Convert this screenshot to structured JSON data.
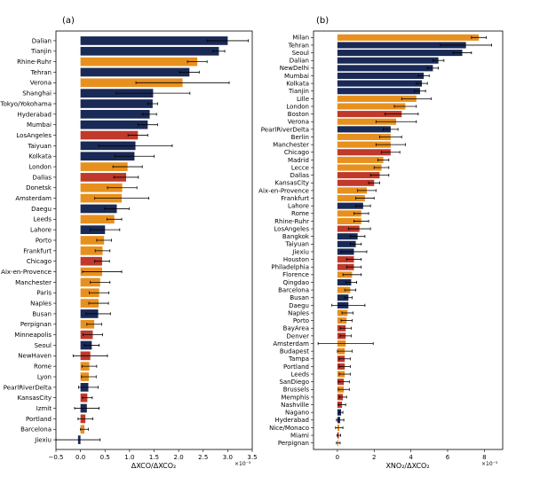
{
  "colors": {
    "east_asia_navy": "#1a2a56",
    "europe_orange": "#e8901e",
    "north_america_red": "#c0392b",
    "error_bar": "#000000"
  },
  "chart_data": [
    {
      "type": "bar",
      "orientation": "horizontal",
      "panel_label": "(a)",
      "xlabel": "ΔXCO/ΔXCO₂",
      "x_scale_note": "×10⁻³",
      "xlim": [
        -0.5,
        3.5
      ],
      "xticks": [
        -0.5,
        0.0,
        0.5,
        1.0,
        1.5,
        2.0,
        2.5,
        3.0,
        3.5
      ],
      "xtick_labels": [
        "−0.5",
        "0.0",
        "0.5",
        "1.0",
        "1.5",
        "2.0",
        "2.5",
        "3.0",
        "3.5"
      ],
      "grid": false,
      "legend": "none",
      "categories": [
        "Dalian",
        "Tianjin",
        "Rhine-Ruhr",
        "Tehran",
        "Verona",
        "Shanghai",
        "Tokyo/Yokohama",
        "Hyderabad",
        "Mumbai",
        "LosAngeles",
        "Taiyuan",
        "Kolkata",
        "London",
        "Dallas",
        "Donetsk",
        "Amsterdam",
        "Daegu",
        "Leeds",
        "Lahore",
        "Porto",
        "Frankfurt",
        "Chicago",
        "Aix-en-Provence",
        "Manchester",
        "Paris",
        "Naples",
        "Busan",
        "Perpignan",
        "Minneapolis",
        "Seoul",
        "NewHaven",
        "Rome",
        "Lyon",
        "PearlRiverDelta",
        "KansasCity",
        "Izmit",
        "Portland",
        "Barcelona",
        "Jiexiu"
      ],
      "values": [
        3.0,
        2.82,
        2.38,
        2.22,
        2.08,
        1.48,
        1.47,
        1.41,
        1.37,
        1.17,
        1.12,
        1.1,
        0.96,
        0.93,
        0.85,
        0.84,
        0.74,
        0.69,
        0.5,
        0.48,
        0.45,
        0.44,
        0.44,
        0.4,
        0.38,
        0.37,
        0.36,
        0.28,
        0.25,
        0.23,
        0.2,
        0.18,
        0.17,
        0.16,
        0.14,
        0.13,
        0.1,
        0.08,
        -0.05
      ],
      "errors": [
        0.42,
        0.12,
        0.2,
        0.2,
        0.95,
        0.75,
        0.1,
        0.14,
        0.2,
        0.2,
        0.75,
        0.4,
        0.3,
        0.25,
        0.3,
        0.55,
        0.25,
        0.15,
        0.3,
        0.15,
        0.15,
        0.15,
        0.4,
        0.2,
        0.2,
        0.2,
        0.25,
        0.15,
        0.2,
        0.15,
        0.35,
        0.15,
        0.15,
        0.2,
        0.1,
        0.25,
        0.15,
        0.08,
        0.45
      ],
      "region": [
        "east_asia_navy",
        "east_asia_navy",
        "europe_orange",
        "east_asia_navy",
        "europe_orange",
        "east_asia_navy",
        "east_asia_navy",
        "east_asia_navy",
        "east_asia_navy",
        "north_america_red",
        "east_asia_navy",
        "east_asia_navy",
        "europe_orange",
        "north_america_red",
        "europe_orange",
        "europe_orange",
        "east_asia_navy",
        "europe_orange",
        "east_asia_navy",
        "europe_orange",
        "europe_orange",
        "north_america_red",
        "europe_orange",
        "europe_orange",
        "europe_orange",
        "europe_orange",
        "east_asia_navy",
        "europe_orange",
        "north_america_red",
        "east_asia_navy",
        "north_america_red",
        "europe_orange",
        "europe_orange",
        "east_asia_navy",
        "north_america_red",
        "east_asia_navy",
        "north_america_red",
        "europe_orange",
        "east_asia_navy"
      ]
    },
    {
      "type": "bar",
      "orientation": "horizontal",
      "panel_label": "(b)",
      "xlabel": "XNO₂/ΔXCO₂",
      "x_scale_note": "×10⁻⁵",
      "xlim": [
        -1.3,
        9.0
      ],
      "xticks": [
        0,
        2,
        4,
        6,
        8
      ],
      "xtick_labels": [
        "0",
        "2",
        "4",
        "6",
        "8"
      ],
      "grid": false,
      "legend": "none",
      "categories": [
        "Milan",
        "Tehran",
        "Seoul",
        "Dalian",
        "NewDelhi",
        "Mumbai",
        "Kolkata",
        "Tianjin",
        "Lille",
        "London",
        "Boston",
        "Verona",
        "PearlRiverDelta",
        "Berlin",
        "Manchester",
        "Chicago",
        "Madrid",
        "Lecce",
        "Dallas",
        "KansasCity",
        "Aix-en-Provence",
        "Frankfurt",
        "Lahore",
        "Rome",
        "Rhine-Ruhr",
        "LosAngeles",
        "Bangkok",
        "Taiyuan",
        "Jiexiu",
        "Houston",
        "Philadelphia",
        "Florence",
        "Qingdao",
        "Barcelona",
        "Busan",
        "Daegu",
        "Naples",
        "Porto",
        "BayArea",
        "Denver",
        "Amsterdam",
        "Budapest",
        "Tampa",
        "Portland",
        "Leeds",
        "SanDiego",
        "Brussels",
        "Memphis",
        "Nashville",
        "Nagano",
        "Hyderabad",
        "Nice/Monaco",
        "Miami",
        "Perpignan"
      ],
      "values": [
        7.7,
        7.0,
        6.8,
        5.5,
        5.2,
        4.7,
        4.6,
        4.5,
        4.3,
        3.7,
        3.5,
        3.2,
        2.9,
        2.9,
        2.9,
        2.9,
        2.5,
        2.4,
        2.3,
        2.0,
        1.6,
        1.5,
        1.4,
        1.3,
        1.3,
        1.2,
        1.1,
        1.0,
        0.9,
        0.9,
        0.9,
        0.8,
        0.75,
        0.7,
        0.6,
        0.6,
        0.55,
        0.5,
        0.45,
        0.45,
        0.45,
        0.4,
        0.4,
        0.4,
        0.4,
        0.35,
        0.35,
        0.3,
        0.25,
        0.2,
        0.15,
        0.1,
        0.08,
        0.05
      ],
      "errors": [
        0.4,
        1.4,
        0.5,
        0.3,
        0.3,
        0.3,
        0.3,
        0.3,
        0.8,
        0.6,
        0.9,
        1.1,
        0.4,
        0.6,
        0.8,
        0.5,
        0.3,
        0.4,
        0.5,
        0.3,
        0.5,
        0.5,
        0.4,
        0.4,
        0.4,
        0.6,
        0.4,
        0.3,
        0.7,
        0.4,
        0.4,
        0.5,
        0.3,
        0.3,
        0.2,
        0.9,
        0.3,
        0.3,
        0.3,
        0.3,
        1.5,
        0.4,
        0.3,
        0.3,
        0.3,
        0.3,
        0.3,
        0.2,
        0.2,
        0.1,
        0.2,
        0.2,
        0.1,
        0.1
      ],
      "region": [
        "europe_orange",
        "east_asia_navy",
        "east_asia_navy",
        "east_asia_navy",
        "east_asia_navy",
        "east_asia_navy",
        "east_asia_navy",
        "east_asia_navy",
        "europe_orange",
        "europe_orange",
        "north_america_red",
        "europe_orange",
        "east_asia_navy",
        "europe_orange",
        "europe_orange",
        "north_america_red",
        "europe_orange",
        "europe_orange",
        "north_america_red",
        "north_america_red",
        "europe_orange",
        "europe_orange",
        "east_asia_navy",
        "europe_orange",
        "europe_orange",
        "north_america_red",
        "east_asia_navy",
        "east_asia_navy",
        "east_asia_navy",
        "north_america_red",
        "north_america_red",
        "europe_orange",
        "east_asia_navy",
        "europe_orange",
        "east_asia_navy",
        "east_asia_navy",
        "europe_orange",
        "europe_orange",
        "north_america_red",
        "north_america_red",
        "europe_orange",
        "europe_orange",
        "north_america_red",
        "north_america_red",
        "europe_orange",
        "north_america_red",
        "europe_orange",
        "north_america_red",
        "north_america_red",
        "east_asia_navy",
        "east_asia_navy",
        "europe_orange",
        "north_america_red",
        "europe_orange"
      ]
    }
  ]
}
